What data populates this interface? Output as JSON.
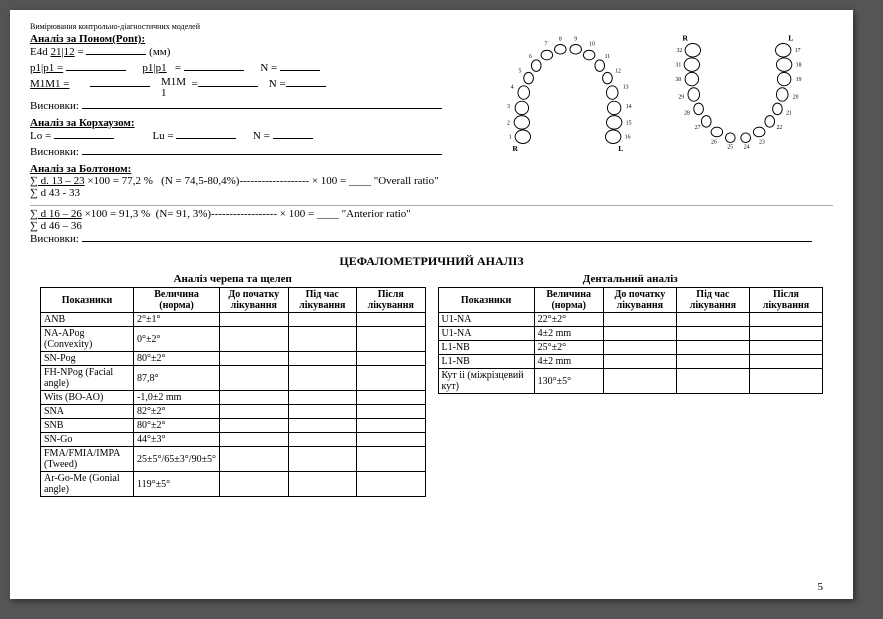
{
  "subtitle": "Вимірювання контрольно-діагностичних моделей",
  "pont": {
    "title": "Аналіз за Поном(Pont):",
    "e4d": "E4d",
    "e4d_label": "21|12",
    "mm": "(мм)",
    "p1p1": "p1|p1 =",
    "p1p1b": "p1|p1",
    "eq": "=",
    "N": "N =",
    "M1M1": "M1M1 =",
    "M1M1b": "M1M\n1",
    "conclusions": "Висновки:"
  },
  "korkhaus": {
    "title": "Аналіз за Корхаузом:",
    "Lo": "Lo =",
    "Lu": "Lu =",
    "N": "N =",
    "conclusions": "Висновки:"
  },
  "bolton": {
    "title": "Аналіз за Болтоном:",
    "overall_num": "∑ d. 13 – 23",
    "overall_eq": "×100 = 77,2 %   (N = 74,5-80,4%)------------------- × 100 = ____ \"Overall ratio\"",
    "overall_den": "∑ d  43 - 33",
    "anterior_num": "∑ d 16 – 26",
    "anterior_eq": "×100 = 91,3 %  (N= 91, 3%)------------------ × 100 = ____ \"Anterior ratio\"",
    "anterior_den": "∑ d 46 – 36",
    "conclusions": "Висновки:"
  },
  "ceph_title": "ЦЕФАЛОМЕТРИЧНИЙ АНАЛІЗ",
  "table1": {
    "caption": "Аналіз черепа та щелеп",
    "headers": [
      "Показники",
      "Величина (норма)",
      "До початку лікування",
      "Під час лікування",
      "Після лікування"
    ],
    "rows": [
      [
        "ANB",
        "2°±1°",
        "",
        "",
        ""
      ],
      [
        "NA-APog (Convexity)",
        "0°±2°",
        "",
        "",
        ""
      ],
      [
        "SN-Pog",
        "80°±2°",
        "",
        "",
        ""
      ],
      [
        "FH-NPog (Facial angle)",
        "87,8°",
        "",
        "",
        ""
      ],
      [
        "Wits (BO-AO)",
        "-1,0±2 mm",
        "",
        "",
        ""
      ],
      [
        "SNA",
        "82°±2°",
        "",
        "",
        ""
      ],
      [
        "SNB",
        "80°±2°",
        "",
        "",
        ""
      ],
      [
        "SN-Go",
        "44°±3°",
        "",
        "",
        ""
      ],
      [
        "FMA/FMIA/IMPA (Tweed)",
        "25±5°/65±3°/90±5°",
        "",
        "",
        ""
      ],
      [
        "Ar-Go-Me (Gonial angle)",
        "119°±5°",
        "",
        "",
        ""
      ]
    ]
  },
  "table2": {
    "caption": "Дентальний аналіз",
    "headers": [
      "Показники",
      "Величина (норма)",
      "До початку лікування",
      "Під час лікування",
      "Після лікування"
    ],
    "rows": [
      [
        "U1-NA",
        "22°±2°",
        "",
        "",
        ""
      ],
      [
        "U1-NA",
        "4±2 mm",
        "",
        "",
        ""
      ],
      [
        "L1-NB",
        "25°±2°",
        "",
        "",
        ""
      ],
      [
        "L1-NB",
        "4±2 mm",
        "",
        "",
        ""
      ],
      [
        "Кут іі (міжрізцевий кут)",
        "130°±5°",
        "",
        "",
        ""
      ]
    ]
  },
  "page_number": "5"
}
